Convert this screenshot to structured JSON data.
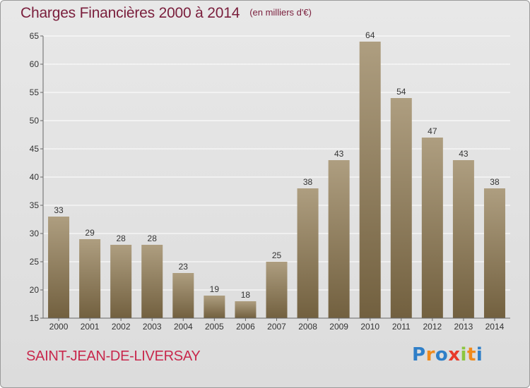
{
  "title": "Charges Financières 2000 à 2014",
  "subtitle": "(en milliers d'€)",
  "commune": "SAINT-JEAN-DE-LIVERSAY",
  "logo": {
    "text": "Proxiti",
    "letters": [
      "P",
      "r",
      "o",
      "x",
      "i",
      "t",
      "i"
    ],
    "colors": [
      "#2f7fc8",
      "#f08a1c",
      "#2f7fc8",
      "#e83a2b",
      "#8cc63f",
      "#f08a1c",
      "#2f7fc8"
    ]
  },
  "colors": {
    "bar_top": "#ae9e80",
    "bar_bottom": "#72603f",
    "grid": "#ffffff",
    "axis": "#666666",
    "title": "#7a1e3c",
    "commune": "#c8284c"
  },
  "chart_data": {
    "type": "bar",
    "title": "Charges Financières 2000 à 2014",
    "subtitle": "(en milliers d'€)",
    "categories": [
      "2000",
      "2001",
      "2002",
      "2003",
      "2004",
      "2005",
      "2006",
      "2007",
      "2008",
      "2009",
      "2010",
      "2011",
      "2012",
      "2013",
      "2014"
    ],
    "values": [
      33,
      29,
      28,
      28,
      23,
      19,
      18,
      25,
      38,
      43,
      64,
      54,
      47,
      43,
      38
    ],
    "ylim": [
      15,
      65
    ],
    "yticks": [
      15,
      20,
      25,
      30,
      35,
      40,
      45,
      50,
      55,
      60,
      65
    ],
    "grid": true,
    "xlabel": "",
    "ylabel": ""
  }
}
